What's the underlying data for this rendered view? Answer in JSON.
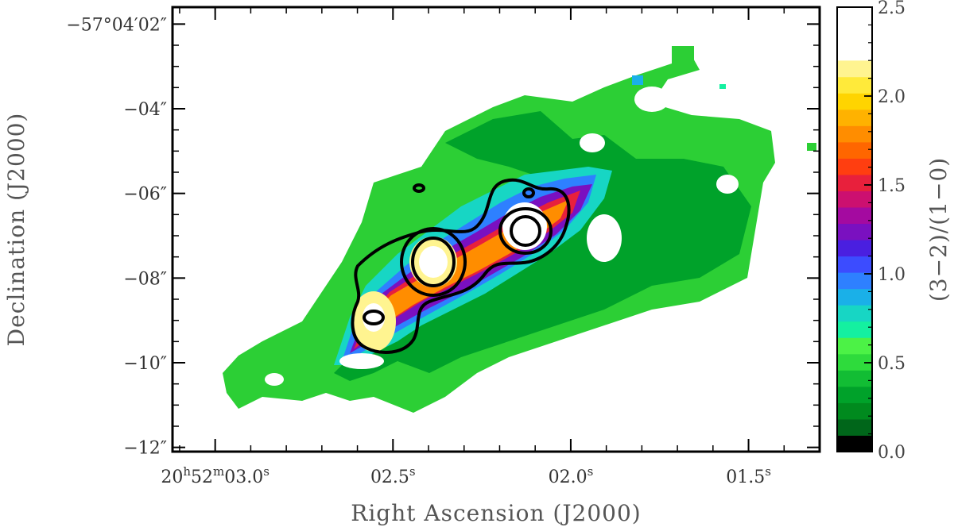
{
  "chart_data": {
    "type": "heatmap",
    "title": "",
    "xlabel": "Right Ascension (J2000)",
    "ylabel": "Declination (J2000)",
    "colorbar_label": "(3−2)/(1−0)",
    "x_tick_labels": [
      {
        "h": "20",
        "m": "52",
        "s": "03.0"
      },
      {
        "h": "",
        "m": "",
        "s": "02.5"
      },
      {
        "h": "",
        "m": "",
        "s": "02.0"
      },
      {
        "h": "",
        "m": "",
        "s": "01.5"
      }
    ],
    "x_ticks_seconds": [
      3.0,
      2.5,
      2.0,
      1.5
    ],
    "xlim_seconds": [
      3.12,
      1.3
    ],
    "y_tick_labels": [
      "−57°04′02″",
      "−04″",
      "−06″",
      "−08″",
      "−10″",
      "−12″"
    ],
    "y_ticks_arcsec": [
      2,
      4,
      6,
      8,
      10,
      12
    ],
    "ylim_arcsec": [
      1.6,
      12.1
    ],
    "colorbar_ticks": [
      "0.0",
      "0.5",
      "1.0",
      "1.5",
      "2.0",
      "2.5"
    ],
    "colorbar_tick_values": [
      0.0,
      0.5,
      1.0,
      1.5,
      2.0,
      2.5
    ],
    "colorbar_range": [
      0.0,
      2.5
    ],
    "colormap": [
      "#000000",
      "#00661a",
      "#008a1e",
      "#00a22a",
      "#12bd34",
      "#2edb3c",
      "#4cf246",
      "#14f0a0",
      "#17d6c4",
      "#1ab0e8",
      "#2e80ff",
      "#3c4cff",
      "#4a1fe0",
      "#7a10c0",
      "#a40aa0",
      "#cc1070",
      "#e8203c",
      "#ff3e10",
      "#ff6600",
      "#ff8d00",
      "#ffb200",
      "#ffd400",
      "#ffea3a",
      "#fff490",
      "#ffffff"
    ],
    "background_color": "#ffffff",
    "contours": [
      {
        "level": 1,
        "shape": "outer envelope around central emission"
      },
      {
        "level": 2,
        "shape": "two inner rings"
      },
      {
        "level": 3,
        "shape": "innermost rings at peaks"
      }
    ],
    "grid": false,
    "legend": "none"
  }
}
